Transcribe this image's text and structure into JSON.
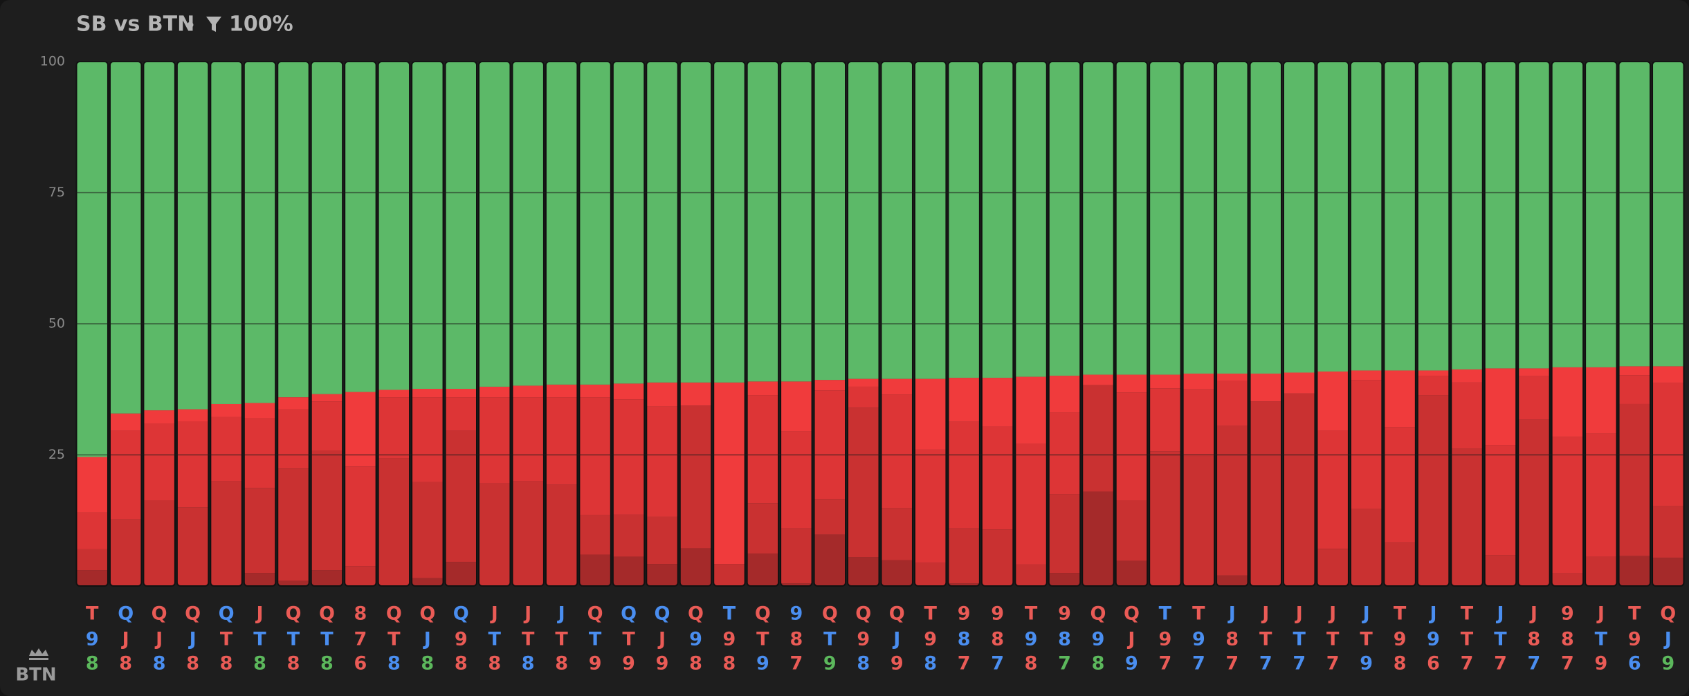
{
  "chart_data": {
    "type": "stacked_bar",
    "title": "SB vs BTN",
    "filter": "100%",
    "player": "BTN",
    "ylim": [
      0,
      100
    ],
    "yticks": [
      25,
      50,
      75,
      100
    ],
    "grid": true,
    "categories": [
      [
        "T",
        "9",
        "8"
      ],
      [
        "Q",
        "J",
        "8"
      ],
      [
        "Q",
        "J",
        "8"
      ],
      [
        "Q",
        "J",
        "8"
      ],
      [
        "Q",
        "T",
        "8"
      ],
      [
        "J",
        "T",
        "8"
      ],
      [
        "Q",
        "T",
        "8"
      ],
      [
        "Q",
        "T",
        "8"
      ],
      [
        "8",
        "7",
        "6"
      ],
      [
        "Q",
        "T",
        "8"
      ],
      [
        "Q",
        "J",
        "8"
      ],
      [
        "Q",
        "9",
        "8"
      ],
      [
        "J",
        "T",
        "8"
      ],
      [
        "J",
        "T",
        "8"
      ],
      [
        "J",
        "T",
        "8"
      ],
      [
        "Q",
        "T",
        "9"
      ],
      [
        "Q",
        "T",
        "9"
      ],
      [
        "Q",
        "J",
        "9"
      ],
      [
        "Q",
        "9",
        "8"
      ],
      [
        "T",
        "9",
        "8"
      ],
      [
        "Q",
        "T",
        "9"
      ],
      [
        "9",
        "8",
        "7"
      ],
      [
        "Q",
        "T",
        "9"
      ],
      [
        "Q",
        "9",
        "8"
      ],
      [
        "Q",
        "J",
        "9"
      ],
      [
        "T",
        "9",
        "8"
      ],
      [
        "9",
        "8",
        "7"
      ],
      [
        "9",
        "8",
        "7"
      ],
      [
        "T",
        "9",
        "8"
      ],
      [
        "9",
        "8",
        "7"
      ],
      [
        "Q",
        "9",
        "8"
      ],
      [
        "Q",
        "J",
        "9"
      ],
      [
        "T",
        "9",
        "7"
      ],
      [
        "T",
        "9",
        "7"
      ],
      [
        "J",
        "8",
        "7"
      ],
      [
        "J",
        "T",
        "7"
      ],
      [
        "J",
        "T",
        "7"
      ],
      [
        "J",
        "T",
        "7"
      ],
      [
        "J",
        "T",
        "9"
      ],
      [
        "T",
        "9",
        "8"
      ],
      [
        "J",
        "9",
        "6"
      ],
      [
        "T",
        "T",
        "7"
      ],
      [
        "J",
        "T",
        "7"
      ],
      [
        "J",
        "8",
        "7"
      ],
      [
        "9",
        "8",
        "7"
      ],
      [
        "J",
        "T",
        "9"
      ],
      [
        "T",
        "9",
        "6"
      ],
      [
        "Q",
        "J",
        "9"
      ]
    ],
    "category_colors": [
      [
        "#ea5b56",
        "#4a8ef0",
        "#5cb85c"
      ],
      [
        "#4a8ef0",
        "#ea5b56",
        "#ea5b56"
      ],
      [
        "#ea5b56",
        "#ea5b56",
        "#4a8ef0"
      ],
      [
        "#ea5b56",
        "#4a8ef0",
        "#ea5b56"
      ],
      [
        "#4a8ef0",
        "#ea5b56",
        "#ea5b56"
      ],
      [
        "#ea5b56",
        "#4a8ef0",
        "#5cb85c"
      ],
      [
        "#ea5b56",
        "#4a8ef0",
        "#ea5b56"
      ],
      [
        "#ea5b56",
        "#4a8ef0",
        "#5cb85c"
      ],
      [
        "#ea5b56",
        "#ea5b56",
        "#ea5b56"
      ],
      [
        "#ea5b56",
        "#ea5b56",
        "#4a8ef0"
      ],
      [
        "#ea5b56",
        "#4a8ef0",
        "#5cb85c"
      ],
      [
        "#4a8ef0",
        "#ea5b56",
        "#ea5b56"
      ],
      [
        "#ea5b56",
        "#4a8ef0",
        "#ea5b56"
      ],
      [
        "#ea5b56",
        "#ea5b56",
        "#4a8ef0"
      ],
      [
        "#4a8ef0",
        "#ea5b56",
        "#ea5b56"
      ],
      [
        "#ea5b56",
        "#4a8ef0",
        "#ea5b56"
      ],
      [
        "#4a8ef0",
        "#ea5b56",
        "#ea5b56"
      ],
      [
        "#4a8ef0",
        "#ea5b56",
        "#ea5b56"
      ],
      [
        "#ea5b56",
        "#4a8ef0",
        "#ea5b56"
      ],
      [
        "#4a8ef0",
        "#ea5b56",
        "#ea5b56"
      ],
      [
        "#ea5b56",
        "#ea5b56",
        "#4a8ef0"
      ],
      [
        "#4a8ef0",
        "#ea5b56",
        "#ea5b56"
      ],
      [
        "#ea5b56",
        "#4a8ef0",
        "#5cb85c"
      ],
      [
        "#ea5b56",
        "#ea5b56",
        "#4a8ef0"
      ],
      [
        "#ea5b56",
        "#4a8ef0",
        "#ea5b56"
      ],
      [
        "#ea5b56",
        "#ea5b56",
        "#4a8ef0"
      ],
      [
        "#ea5b56",
        "#4a8ef0",
        "#ea5b56"
      ],
      [
        "#ea5b56",
        "#ea5b56",
        "#4a8ef0"
      ],
      [
        "#ea5b56",
        "#4a8ef0",
        "#ea5b56"
      ],
      [
        "#ea5b56",
        "#4a8ef0",
        "#5cb85c"
      ],
      [
        "#ea5b56",
        "#4a8ef0",
        "#5cb85c"
      ],
      [
        "#ea5b56",
        "#ea5b56",
        "#4a8ef0"
      ],
      [
        "#4a8ef0",
        "#ea5b56",
        "#ea5b56"
      ],
      [
        "#ea5b56",
        "#4a8ef0",
        "#4a8ef0"
      ],
      [
        "#4a8ef0",
        "#ea5b56",
        "#ea5b56"
      ],
      [
        "#ea5b56",
        "#ea5b56",
        "#4a8ef0"
      ],
      [
        "#ea5b56",
        "#4a8ef0",
        "#4a8ef0"
      ],
      [
        "#ea5b56",
        "#ea5b56",
        "#ea5b56"
      ],
      [
        "#4a8ef0",
        "#ea5b56",
        "#4a8ef0"
      ],
      [
        "#ea5b56",
        "#ea5b56",
        "#ea5b56"
      ],
      [
        "#4a8ef0",
        "#4a8ef0",
        "#ea5b56"
      ],
      [
        "#ea5b56",
        "#ea5b56",
        "#ea5b56"
      ],
      [
        "#4a8ef0",
        "#4a8ef0",
        "#ea5b56"
      ],
      [
        "#ea5b56",
        "#ea5b56",
        "#4a8ef0"
      ],
      [
        "#ea5b56",
        "#ea5b56",
        "#ea5b56"
      ],
      [
        "#ea5b56",
        "#4a8ef0",
        "#ea5b56"
      ],
      [
        "#ea5b56",
        "#ea5b56",
        "#4a8ef0"
      ],
      [
        "#ea5b56",
        "#4a8ef0",
        "#5cb85c"
      ]
    ],
    "series": [
      {
        "color": "#a52a2a",
        "values": [
          3,
          0,
          0,
          0,
          0,
          2.5,
          1,
          3,
          0,
          0,
          1.5,
          4.6,
          0,
          0,
          0,
          6,
          5.6,
          4.2,
          7.2,
          0,
          6.2,
          0.5,
          9.8,
          5.5,
          4.9,
          0,
          0.5,
          0,
          0,
          2.5,
          18,
          4.8,
          0,
          0,
          2,
          0,
          0,
          0,
          0,
          0,
          0,
          0,
          0,
          0,
          0,
          0,
          5.7,
          5.4
        ]
      },
      {
        "color": "#c93131",
        "values": [
          4,
          12.7,
          16.3,
          15,
          20,
          16.2,
          21.4,
          22.8,
          3.8,
          24.4,
          18.3,
          25,
          19.6,
          20,
          19.3,
          7.5,
          8,
          9,
          27.2,
          4.2,
          9.6,
          10.5,
          6.8,
          28.5,
          10,
          4.4,
          10.5,
          10.8,
          4.1,
          15,
          20.3,
          11.5,
          25.7,
          24.8,
          28.5,
          35.2,
          36.7,
          7.1,
          14.7,
          8.3,
          36.4,
          26.2,
          5.9,
          31.7,
          2.4,
          5.6,
          29,
          9.8
        ]
      },
      {
        "color": "#dd3536",
        "values": [
          7,
          16.9,
          14.7,
          16.4,
          12.2,
          13.3,
          11.3,
          9.4,
          19,
          11.6,
          16.2,
          6.4,
          16.4,
          16,
          16.7,
          22.5,
          22,
          21,
          0,
          0,
          20.6,
          18.5,
          20.7,
          4,
          21.6,
          21.6,
          20.3,
          19.6,
          23,
          15.6,
          0,
          20.6,
          12,
          12.7,
          8.6,
          0,
          0,
          22.5,
          24.6,
          22,
          3.7,
          12.6,
          21,
          8.3,
          26,
          23.5,
          5.5,
          23.5
        ]
      },
      {
        "color": "#f03b3c",
        "values": [
          10.6,
          3.3,
          2.5,
          2.3,
          2.5,
          2.9,
          2.3,
          1.4,
          14.2,
          1.4,
          1.6,
          1.6,
          2,
          2.2,
          2.4,
          2.4,
          3,
          4.6,
          4.4,
          34.6,
          2.6,
          9.5,
          2,
          1.5,
          3,
          13.5,
          8.4,
          9.3,
          12.8,
          7,
          2,
          3.4,
          2.6,
          3,
          1.4,
          5.3,
          4,
          11.3,
          1.8,
          10.8,
          1,
          2.5,
          14.6,
          1.5,
          13.3,
          12.6,
          1.7,
          3.2
        ]
      },
      {
        "color": "#5cb968",
        "values": [
          75.4,
          67.1,
          66.5,
          66.3,
          65.3,
          65.1,
          64,
          63.4,
          63,
          62.6,
          62.4,
          62.4,
          62,
          61.8,
          61.6,
          61.6,
          61.4,
          61.2,
          61.2,
          61.2,
          61,
          61,
          60.7,
          60.5,
          60.5,
          60.5,
          60.3,
          60.3,
          60.1,
          59.9,
          59.7,
          59.7,
          59.7,
          59.5,
          59.5,
          59.5,
          59.3,
          59.1,
          58.9,
          58.9,
          58.9,
          58.7,
          58.5,
          58.5,
          58.3,
          58.3,
          58.1,
          58.1
        ]
      }
    ]
  }
}
